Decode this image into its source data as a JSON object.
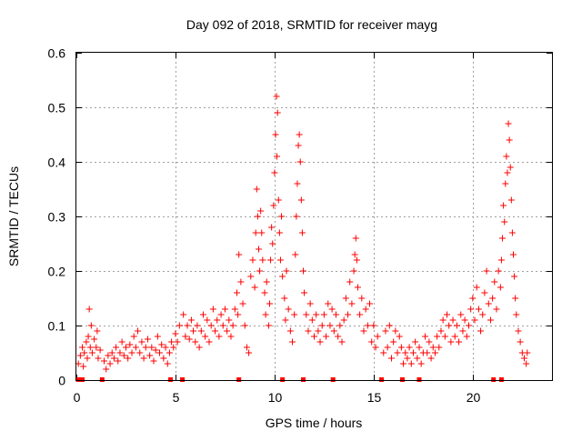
{
  "chart_data": {
    "type": "scatter",
    "title": "Day 092 of 2018, SRMTID for receiver mayg",
    "xlabel": "GPS time / hours",
    "ylabel": "SRMTID / TECUs",
    "xlim": [
      0,
      24
    ],
    "ylim": [
      0,
      0.6
    ],
    "x_ticks": [
      0,
      5,
      10,
      15,
      20
    ],
    "x_tick_labels": [
      "0",
      "5",
      "10",
      "15",
      "20"
    ],
    "y_ticks": [
      0,
      0.1,
      0.2,
      0.3,
      0.4,
      0.5,
      0.6
    ],
    "y_tick_labels": [
      "0",
      "0.1",
      "0.2",
      "0.3",
      "0.4",
      "0.5",
      "0.6"
    ],
    "grid": true,
    "marker": "plus",
    "color": "#ff0000",
    "series": [
      {
        "name": "SRMTID",
        "points": [
          [
            0.1,
            0.03
          ],
          [
            0.2,
            0.045
          ],
          [
            0.3,
            0.06
          ],
          [
            0.35,
            0.025
          ],
          [
            0.4,
            0.05
          ],
          [
            0.5,
            0.07
          ],
          [
            0.55,
            0.04
          ],
          [
            0.6,
            0.08
          ],
          [
            0.65,
            0.13
          ],
          [
            0.7,
            0.06
          ],
          [
            0.75,
            0.1
          ],
          [
            0.8,
            0.05
          ],
          [
            0.9,
            0.075
          ],
          [
            1.0,
            0.06
          ],
          [
            1.05,
            0.09
          ],
          [
            1.1,
            0.04
          ],
          [
            1.2,
            0.055
          ],
          [
            1.4,
            0.035
          ],
          [
            1.5,
            0.02
          ],
          [
            1.6,
            0.045
          ],
          [
            1.7,
            0.03
          ],
          [
            1.8,
            0.05
          ],
          [
            1.9,
            0.04
          ],
          [
            2.0,
            0.06
          ],
          [
            2.1,
            0.035
          ],
          [
            2.2,
            0.05
          ],
          [
            2.3,
            0.07
          ],
          [
            2.4,
            0.045
          ],
          [
            2.5,
            0.06
          ],
          [
            2.6,
            0.04
          ],
          [
            2.7,
            0.065
          ],
          [
            2.8,
            0.05
          ],
          [
            2.9,
            0.08
          ],
          [
            3.0,
            0.06
          ],
          [
            3.1,
            0.09
          ],
          [
            3.2,
            0.05
          ],
          [
            3.3,
            0.07
          ],
          [
            3.4,
            0.04
          ],
          [
            3.5,
            0.06
          ],
          [
            3.6,
            0.075
          ],
          [
            3.7,
            0.045
          ],
          [
            3.8,
            0.06
          ],
          [
            3.9,
            0.035
          ],
          [
            4.0,
            0.055
          ],
          [
            4.1,
            0.08
          ],
          [
            4.2,
            0.05
          ],
          [
            4.3,
            0.065
          ],
          [
            4.4,
            0.04
          ],
          [
            4.5,
            0.06
          ],
          [
            4.6,
            0.03
          ],
          [
            4.7,
            0.05
          ],
          [
            4.8,
            0.07
          ],
          [
            4.9,
            0.06
          ],
          [
            5.0,
            0.085
          ],
          [
            5.1,
            0.07
          ],
          [
            5.2,
            0.1
          ],
          [
            5.4,
            0.12
          ],
          [
            5.5,
            0.08
          ],
          [
            5.6,
            0.1
          ],
          [
            5.7,
            0.075
          ],
          [
            5.8,
            0.11
          ],
          [
            5.9,
            0.09
          ],
          [
            6.0,
            0.07
          ],
          [
            6.1,
            0.1
          ],
          [
            6.2,
            0.06
          ],
          [
            6.3,
            0.09
          ],
          [
            6.4,
            0.12
          ],
          [
            6.5,
            0.08
          ],
          [
            6.6,
            0.11
          ],
          [
            6.7,
            0.07
          ],
          [
            6.8,
            0.1
          ],
          [
            6.9,
            0.13
          ],
          [
            7.0,
            0.09
          ],
          [
            7.1,
            0.11
          ],
          [
            7.2,
            0.08
          ],
          [
            7.3,
            0.12
          ],
          [
            7.4,
            0.1
          ],
          [
            7.5,
            0.13
          ],
          [
            7.6,
            0.09
          ],
          [
            7.7,
            0.11
          ],
          [
            7.8,
            0.08
          ],
          [
            7.9,
            0.1
          ],
          [
            8.0,
            0.13
          ],
          [
            8.1,
            0.16
          ],
          [
            8.15,
            0.12
          ],
          [
            8.2,
            0.23
          ],
          [
            8.3,
            0.18
          ],
          [
            8.4,
            0.14
          ],
          [
            8.5,
            0.1
          ],
          [
            8.6,
            0.06
          ],
          [
            8.7,
            0.05
          ],
          [
            8.8,
            0.19
          ],
          [
            8.9,
            0.22
          ],
          [
            9.0,
            0.17
          ],
          [
            9.05,
            0.27
          ],
          [
            9.1,
            0.35
          ],
          [
            9.15,
            0.3
          ],
          [
            9.2,
            0.24
          ],
          [
            9.25,
            0.2
          ],
          [
            9.3,
            0.31
          ],
          [
            9.35,
            0.27
          ],
          [
            9.4,
            0.22
          ],
          [
            9.5,
            0.16
          ],
          [
            9.55,
            0.12
          ],
          [
            9.6,
            0.18
          ],
          [
            9.7,
            0.1
          ],
          [
            9.75,
            0.14
          ],
          [
            9.8,
            0.22
          ],
          [
            9.85,
            0.28
          ],
          [
            9.9,
            0.25
          ],
          [
            9.95,
            0.32
          ],
          [
            10.0,
            0.38
          ],
          [
            10.05,
            0.45
          ],
          [
            10.1,
            0.52
          ],
          [
            10.12,
            0.41
          ],
          [
            10.15,
            0.49
          ],
          [
            10.2,
            0.33
          ],
          [
            10.25,
            0.27
          ],
          [
            10.3,
            0.22
          ],
          [
            10.35,
            0.3
          ],
          [
            10.4,
            0.19
          ],
          [
            10.5,
            0.15
          ],
          [
            10.55,
            0.11
          ],
          [
            10.6,
            0.2
          ],
          [
            10.7,
            0.13
          ],
          [
            10.8,
            0.09
          ],
          [
            10.9,
            0.07
          ],
          [
            11.0,
            0.12
          ],
          [
            11.05,
            0.23
          ],
          [
            11.1,
            0.3
          ],
          [
            11.15,
            0.36
          ],
          [
            11.2,
            0.43
          ],
          [
            11.25,
            0.45
          ],
          [
            11.3,
            0.4
          ],
          [
            11.35,
            0.33
          ],
          [
            11.4,
            0.27
          ],
          [
            11.45,
            0.2
          ],
          [
            11.5,
            0.16
          ],
          [
            11.6,
            0.12
          ],
          [
            11.7,
            0.09
          ],
          [
            11.8,
            0.14
          ],
          [
            11.9,
            0.11
          ],
          [
            12.0,
            0.08
          ],
          [
            12.1,
            0.12
          ],
          [
            12.2,
            0.09
          ],
          [
            12.3,
            0.07
          ],
          [
            12.4,
            0.1
          ],
          [
            12.5,
            0.12
          ],
          [
            12.6,
            0.08
          ],
          [
            12.7,
            0.14
          ],
          [
            12.8,
            0.1
          ],
          [
            12.9,
            0.13
          ],
          [
            13.0,
            0.09
          ],
          [
            13.1,
            0.12
          ],
          [
            13.2,
            0.08
          ],
          [
            13.3,
            0.1
          ],
          [
            13.4,
            0.07
          ],
          [
            13.5,
            0.11
          ],
          [
            13.6,
            0.15
          ],
          [
            13.7,
            0.12
          ],
          [
            13.8,
            0.18
          ],
          [
            13.9,
            0.14
          ],
          [
            14.0,
            0.2
          ],
          [
            14.05,
            0.23
          ],
          [
            14.1,
            0.26
          ],
          [
            14.15,
            0.22
          ],
          [
            14.2,
            0.17
          ],
          [
            14.3,
            0.12
          ],
          [
            14.4,
            0.15
          ],
          [
            14.5,
            0.09
          ],
          [
            14.6,
            0.13
          ],
          [
            14.7,
            0.1
          ],
          [
            14.8,
            0.14
          ],
          [
            14.9,
            0.07
          ],
          [
            15.0,
            0.1
          ],
          [
            15.1,
            0.06
          ],
          [
            15.2,
            0.08
          ],
          [
            15.5,
            0.05
          ],
          [
            15.6,
            0.09
          ],
          [
            15.7,
            0.06
          ],
          [
            15.8,
            0.1
          ],
          [
            15.9,
            0.04
          ],
          [
            16.0,
            0.07
          ],
          [
            16.1,
            0.09
          ],
          [
            16.2,
            0.05
          ],
          [
            16.3,
            0.08
          ],
          [
            16.4,
            0.06
          ],
          [
            16.5,
            0.03
          ],
          [
            16.6,
            0.05
          ],
          [
            16.7,
            0.04
          ],
          [
            16.8,
            0.06
          ],
          [
            16.9,
            0.03
          ],
          [
            17.0,
            0.05
          ],
          [
            17.1,
            0.07
          ],
          [
            17.2,
            0.04
          ],
          [
            17.3,
            0.06
          ],
          [
            17.4,
            0.03
          ],
          [
            17.5,
            0.05
          ],
          [
            17.6,
            0.08
          ],
          [
            17.7,
            0.05
          ],
          [
            17.8,
            0.07
          ],
          [
            17.9,
            0.04
          ],
          [
            18.0,
            0.06
          ],
          [
            18.1,
            0.05
          ],
          [
            18.2,
            0.08
          ],
          [
            18.3,
            0.06
          ],
          [
            18.4,
            0.09
          ],
          [
            18.5,
            0.11
          ],
          [
            18.6,
            0.08
          ],
          [
            18.7,
            0.12
          ],
          [
            18.8,
            0.1
          ],
          [
            18.9,
            0.07
          ],
          [
            19.0,
            0.11
          ],
          [
            19.1,
            0.08
          ],
          [
            19.2,
            0.1
          ],
          [
            19.3,
            0.07
          ],
          [
            19.4,
            0.12
          ],
          [
            19.5,
            0.09
          ],
          [
            19.6,
            0.11
          ],
          [
            19.7,
            0.08
          ],
          [
            19.8,
            0.1
          ],
          [
            19.9,
            0.13
          ],
          [
            20.0,
            0.15
          ],
          [
            20.1,
            0.11
          ],
          [
            20.2,
            0.17
          ],
          [
            20.3,
            0.13
          ],
          [
            20.4,
            0.09
          ],
          [
            20.5,
            0.12
          ],
          [
            20.6,
            0.16
          ],
          [
            20.7,
            0.2
          ],
          [
            20.8,
            0.14
          ],
          [
            20.9,
            0.11
          ],
          [
            21.0,
            0.15
          ],
          [
            21.1,
            0.18
          ],
          [
            21.2,
            0.13
          ],
          [
            21.3,
            0.2
          ],
          [
            21.4,
            0.17
          ],
          [
            21.45,
            0.22
          ],
          [
            21.5,
            0.26
          ],
          [
            21.55,
            0.32
          ],
          [
            21.6,
            0.29
          ],
          [
            21.65,
            0.36
          ],
          [
            21.7,
            0.41
          ],
          [
            21.75,
            0.38
          ],
          [
            21.8,
            0.47
          ],
          [
            21.85,
            0.44
          ],
          [
            21.9,
            0.39
          ],
          [
            21.95,
            0.33
          ],
          [
            22.0,
            0.27
          ],
          [
            22.05,
            0.23
          ],
          [
            22.1,
            0.19
          ],
          [
            22.15,
            0.15
          ],
          [
            22.2,
            0.12
          ],
          [
            22.3,
            0.09
          ],
          [
            22.4,
            0.07
          ],
          [
            22.5,
            0.05
          ],
          [
            22.6,
            0.04
          ],
          [
            22.7,
            0.03
          ],
          [
            22.75,
            0.05
          ]
        ]
      }
    ],
    "gap_markers_x": [
      0.1,
      0.3,
      1.3,
      4.75,
      5.35,
      8.2,
      10.4,
      11.45,
      12.95,
      15.4,
      16.45,
      17.3,
      21.05,
      21.45
    ]
  }
}
